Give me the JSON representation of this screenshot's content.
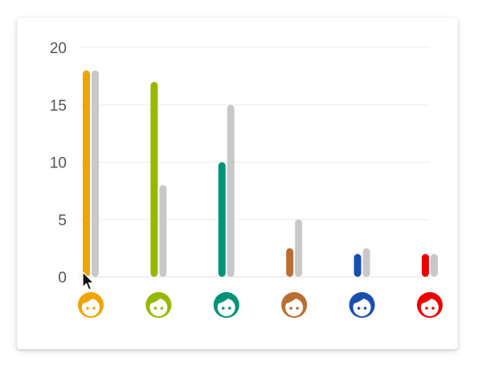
{
  "chart_data": {
    "type": "bar",
    "categories": [
      "",
      "",
      "",
      "",
      "",
      ""
    ],
    "icons": [
      "face-icon",
      "face-icon",
      "face-icon",
      "face-icon",
      "face-icon",
      "face-icon"
    ],
    "series": [
      {
        "values": [
          18,
          17,
          10,
          2.5,
          2,
          2
        ],
        "colors": [
          "#f0a400",
          "#97b800",
          "#009477",
          "#b96f32",
          "#1a4fb0",
          "#ef0000"
        ]
      },
      {
        "values": [
          18,
          8,
          15,
          5,
          2.5,
          2
        ],
        "color": "#c8c8c8"
      }
    ],
    "yticks": [
      "0",
      "5",
      "10",
      "15",
      "20"
    ],
    "ylim": [
      0,
      20
    ],
    "grid": true,
    "title": "",
    "xlabel": "",
    "ylabel": ""
  }
}
